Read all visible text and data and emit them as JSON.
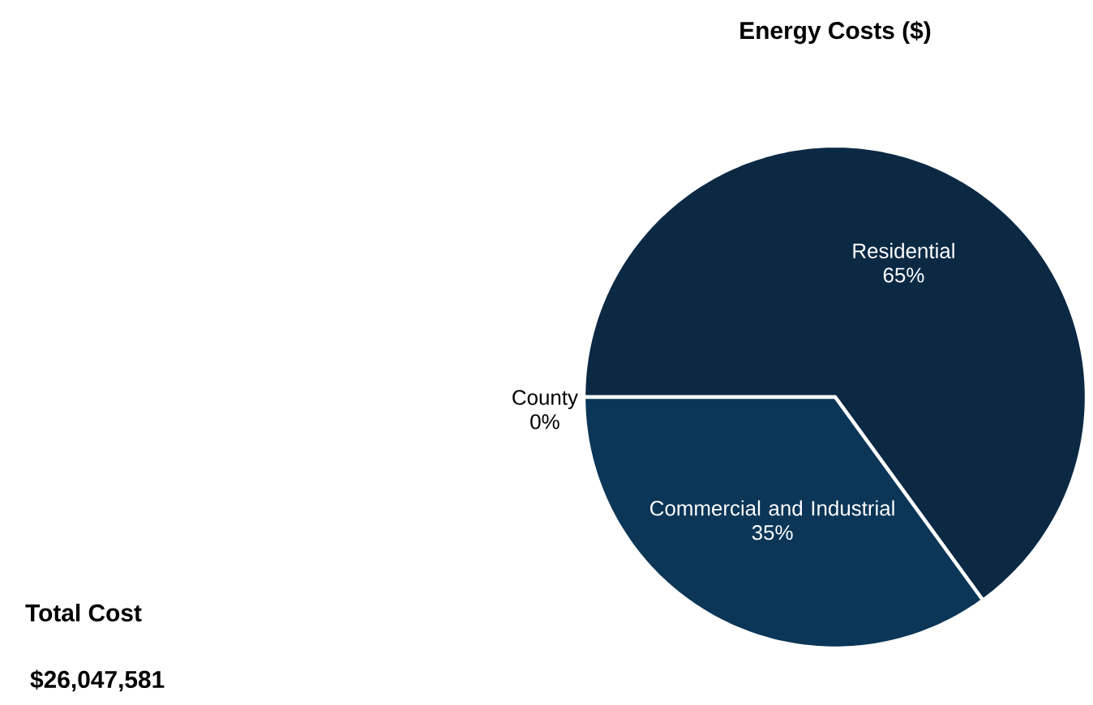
{
  "chart_data": {
    "type": "pie",
    "title": "Energy Costs ($)",
    "categories": [
      "Residential",
      "Commercial and Industrial",
      "County"
    ],
    "values": [
      65,
      35,
      0
    ],
    "colors": [
      "#0c2944",
      "#0b3657",
      "#0b3657"
    ],
    "value_labels": [
      "65%",
      "35%",
      "0%"
    ],
    "annotations": [
      "Total Cost",
      "$26,047,581"
    ]
  }
}
